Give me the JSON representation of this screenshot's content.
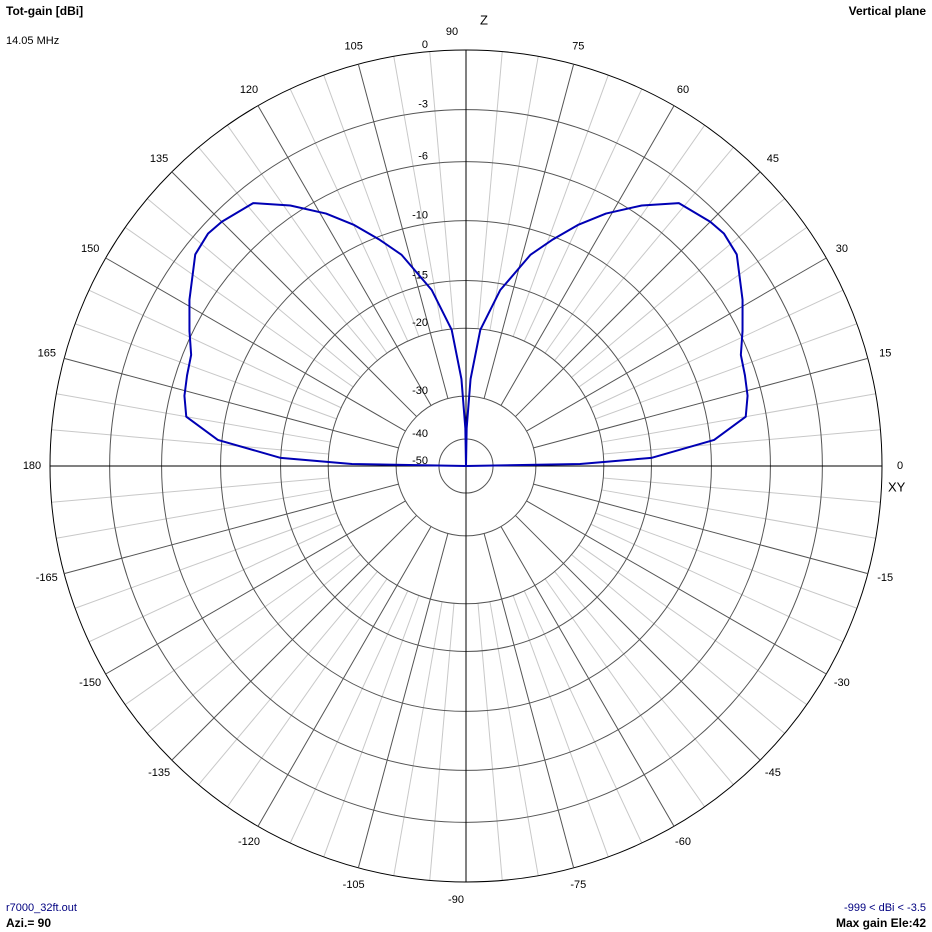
{
  "chart_data": {
    "type": "polar",
    "title": "Tot-gain [dBi]",
    "subtitle": "14.05 MHz",
    "plane": "Vertical plane",
    "vertical_axis_label": "Z",
    "horizontal_axis_label": "XY",
    "file": "r7000_32ft.out",
    "azimuth": "Azi.= 90",
    "range_note": "-999 < dBi < -3.5",
    "max_gain_note": "Max gain Ele:42",
    "color": "#0000b4",
    "rlim": [
      -50,
      0
    ],
    "rticks": [
      0,
      -3,
      -6,
      -10,
      -15,
      -20,
      -30,
      -40,
      -50
    ],
    "thetaticks": [
      0,
      15,
      30,
      45,
      60,
      75,
      90,
      105,
      120,
      135,
      150,
      165,
      180,
      -165,
      -150,
      -135,
      -120,
      -105,
      -90,
      -75,
      -60,
      -45,
      -30,
      -15
    ],
    "x": [
      0,
      1,
      2.5,
      6,
      10,
      14,
      18,
      22,
      26,
      31,
      38,
      42,
      45,
      51,
      56,
      61,
      65,
      69,
      73,
      79,
      84,
      87,
      89,
      90,
      91,
      93,
      96,
      101,
      107,
      111,
      115,
      119,
      124,
      129,
      135,
      138,
      142,
      149,
      154,
      158,
      162,
      166,
      170,
      174,
      177.5,
      179,
      180
    ],
    "values": [
      -50,
      -23,
      -15,
      -9.7,
      -7.3,
      -6.9,
      -6.7,
      -6.5,
      -5.8,
      -4.9,
      -3.7,
      -3.5,
      -3.6,
      -4.0,
      -5.4,
      -7.0,
      -8.5,
      -10.2,
      -11.9,
      -15.6,
      -20.1,
      -27,
      -37,
      -50,
      -37,
      -27,
      -20.1,
      -15.6,
      -11.9,
      -10.2,
      -8.5,
      -7.0,
      -5.4,
      -4.0,
      -3.6,
      -3.5,
      -3.7,
      -4.9,
      -5.8,
      -6.5,
      -6.7,
      -6.9,
      -7.3,
      -9.7,
      -15,
      -23,
      -50
    ]
  }
}
